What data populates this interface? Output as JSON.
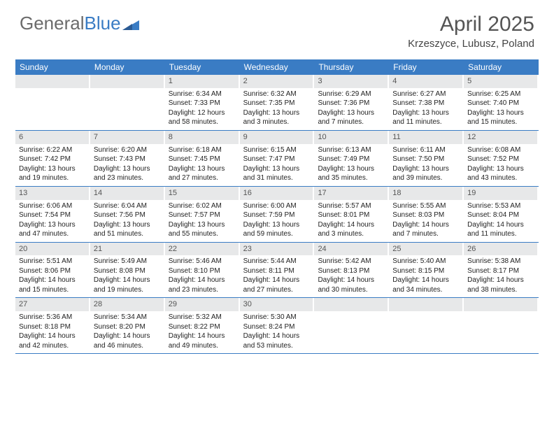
{
  "logo": {
    "text1": "General",
    "text2": "Blue"
  },
  "title": "April 2025",
  "location": "Krzeszyce, Lubusz, Poland",
  "colors": {
    "header_bg": "#3a7cc4",
    "header_text": "#ffffff",
    "numbar_bg": "#e7e8e9",
    "rule": "#3a7cc4",
    "logo_gray": "#6b6b6b",
    "logo_blue": "#3a7cc4"
  },
  "day_headers": [
    "Sunday",
    "Monday",
    "Tuesday",
    "Wednesday",
    "Thursday",
    "Friday",
    "Saturday"
  ],
  "weeks": [
    [
      {
        "n": "",
        "sr": "",
        "ss": "",
        "dl": ""
      },
      {
        "n": "",
        "sr": "",
        "ss": "",
        "dl": ""
      },
      {
        "n": "1",
        "sr": "Sunrise: 6:34 AM",
        "ss": "Sunset: 7:33 PM",
        "dl": "Daylight: 12 hours and 58 minutes."
      },
      {
        "n": "2",
        "sr": "Sunrise: 6:32 AM",
        "ss": "Sunset: 7:35 PM",
        "dl": "Daylight: 13 hours and 3 minutes."
      },
      {
        "n": "3",
        "sr": "Sunrise: 6:29 AM",
        "ss": "Sunset: 7:36 PM",
        "dl": "Daylight: 13 hours and 7 minutes."
      },
      {
        "n": "4",
        "sr": "Sunrise: 6:27 AM",
        "ss": "Sunset: 7:38 PM",
        "dl": "Daylight: 13 hours and 11 minutes."
      },
      {
        "n": "5",
        "sr": "Sunrise: 6:25 AM",
        "ss": "Sunset: 7:40 PM",
        "dl": "Daylight: 13 hours and 15 minutes."
      }
    ],
    [
      {
        "n": "6",
        "sr": "Sunrise: 6:22 AM",
        "ss": "Sunset: 7:42 PM",
        "dl": "Daylight: 13 hours and 19 minutes."
      },
      {
        "n": "7",
        "sr": "Sunrise: 6:20 AM",
        "ss": "Sunset: 7:43 PM",
        "dl": "Daylight: 13 hours and 23 minutes."
      },
      {
        "n": "8",
        "sr": "Sunrise: 6:18 AM",
        "ss": "Sunset: 7:45 PM",
        "dl": "Daylight: 13 hours and 27 minutes."
      },
      {
        "n": "9",
        "sr": "Sunrise: 6:15 AM",
        "ss": "Sunset: 7:47 PM",
        "dl": "Daylight: 13 hours and 31 minutes."
      },
      {
        "n": "10",
        "sr": "Sunrise: 6:13 AM",
        "ss": "Sunset: 7:49 PM",
        "dl": "Daylight: 13 hours and 35 minutes."
      },
      {
        "n": "11",
        "sr": "Sunrise: 6:11 AM",
        "ss": "Sunset: 7:50 PM",
        "dl": "Daylight: 13 hours and 39 minutes."
      },
      {
        "n": "12",
        "sr": "Sunrise: 6:08 AM",
        "ss": "Sunset: 7:52 PM",
        "dl": "Daylight: 13 hours and 43 minutes."
      }
    ],
    [
      {
        "n": "13",
        "sr": "Sunrise: 6:06 AM",
        "ss": "Sunset: 7:54 PM",
        "dl": "Daylight: 13 hours and 47 minutes."
      },
      {
        "n": "14",
        "sr": "Sunrise: 6:04 AM",
        "ss": "Sunset: 7:56 PM",
        "dl": "Daylight: 13 hours and 51 minutes."
      },
      {
        "n": "15",
        "sr": "Sunrise: 6:02 AM",
        "ss": "Sunset: 7:57 PM",
        "dl": "Daylight: 13 hours and 55 minutes."
      },
      {
        "n": "16",
        "sr": "Sunrise: 6:00 AM",
        "ss": "Sunset: 7:59 PM",
        "dl": "Daylight: 13 hours and 59 minutes."
      },
      {
        "n": "17",
        "sr": "Sunrise: 5:57 AM",
        "ss": "Sunset: 8:01 PM",
        "dl": "Daylight: 14 hours and 3 minutes."
      },
      {
        "n": "18",
        "sr": "Sunrise: 5:55 AM",
        "ss": "Sunset: 8:03 PM",
        "dl": "Daylight: 14 hours and 7 minutes."
      },
      {
        "n": "19",
        "sr": "Sunrise: 5:53 AM",
        "ss": "Sunset: 8:04 PM",
        "dl": "Daylight: 14 hours and 11 minutes."
      }
    ],
    [
      {
        "n": "20",
        "sr": "Sunrise: 5:51 AM",
        "ss": "Sunset: 8:06 PM",
        "dl": "Daylight: 14 hours and 15 minutes."
      },
      {
        "n": "21",
        "sr": "Sunrise: 5:49 AM",
        "ss": "Sunset: 8:08 PM",
        "dl": "Daylight: 14 hours and 19 minutes."
      },
      {
        "n": "22",
        "sr": "Sunrise: 5:46 AM",
        "ss": "Sunset: 8:10 PM",
        "dl": "Daylight: 14 hours and 23 minutes."
      },
      {
        "n": "23",
        "sr": "Sunrise: 5:44 AM",
        "ss": "Sunset: 8:11 PM",
        "dl": "Daylight: 14 hours and 27 minutes."
      },
      {
        "n": "24",
        "sr": "Sunrise: 5:42 AM",
        "ss": "Sunset: 8:13 PM",
        "dl": "Daylight: 14 hours and 30 minutes."
      },
      {
        "n": "25",
        "sr": "Sunrise: 5:40 AM",
        "ss": "Sunset: 8:15 PM",
        "dl": "Daylight: 14 hours and 34 minutes."
      },
      {
        "n": "26",
        "sr": "Sunrise: 5:38 AM",
        "ss": "Sunset: 8:17 PM",
        "dl": "Daylight: 14 hours and 38 minutes."
      }
    ],
    [
      {
        "n": "27",
        "sr": "Sunrise: 5:36 AM",
        "ss": "Sunset: 8:18 PM",
        "dl": "Daylight: 14 hours and 42 minutes."
      },
      {
        "n": "28",
        "sr": "Sunrise: 5:34 AM",
        "ss": "Sunset: 8:20 PM",
        "dl": "Daylight: 14 hours and 46 minutes."
      },
      {
        "n": "29",
        "sr": "Sunrise: 5:32 AM",
        "ss": "Sunset: 8:22 PM",
        "dl": "Daylight: 14 hours and 49 minutes."
      },
      {
        "n": "30",
        "sr": "Sunrise: 5:30 AM",
        "ss": "Sunset: 8:24 PM",
        "dl": "Daylight: 14 hours and 53 minutes."
      },
      {
        "n": "",
        "sr": "",
        "ss": "",
        "dl": ""
      },
      {
        "n": "",
        "sr": "",
        "ss": "",
        "dl": ""
      },
      {
        "n": "",
        "sr": "",
        "ss": "",
        "dl": ""
      }
    ]
  ]
}
